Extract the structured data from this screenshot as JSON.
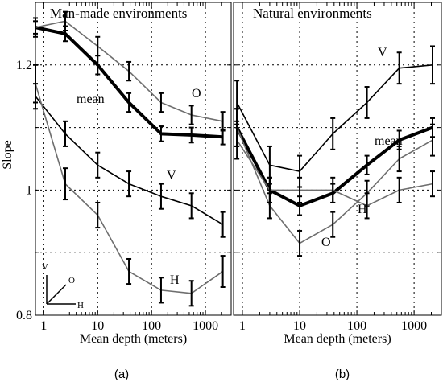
{
  "chart_data": [
    {
      "type": "line",
      "panel": "(a)",
      "title": "Man-made environments",
      "xlabel": "Mean depth (meters)",
      "ylabel": "Slope",
      "xscale": "log",
      "xlim": [
        0.7,
        3000
      ],
      "ylim": [
        0.8,
        1.3
      ],
      "xticks": [
        "1",
        "10",
        "100",
        "1000"
      ],
      "yticks": [
        "0.8",
        "1",
        "1.2"
      ],
      "grid": true,
      "x": [
        0.7,
        2.5,
        10,
        38,
        150,
        550,
        2100
      ],
      "series": [
        {
          "name": "mean",
          "color": "#000000",
          "width": "thick",
          "values": [
            1.26,
            1.25,
            1.2,
            1.14,
            1.09,
            1.088,
            1.085
          ],
          "errors": [
            0.01,
            0.012,
            0.015,
            0.015,
            0.012,
            0.012,
            0.012
          ]
        },
        {
          "name": "O",
          "color": "#6e6e6e",
          "width": "normal",
          "values": [
            1.26,
            1.27,
            1.23,
            1.19,
            1.14,
            1.12,
            1.11
          ],
          "errors": [
            0.015,
            0.015,
            0.015,
            0.015,
            0.015,
            0.015,
            0.015
          ]
        },
        {
          "name": "V",
          "color": "#000000",
          "width": "normal",
          "values": [
            1.15,
            1.09,
            1.04,
            1.01,
            0.99,
            0.975,
            0.945
          ],
          "errors": [
            0.02,
            0.02,
            0.02,
            0.02,
            0.02,
            0.02,
            0.02
          ]
        },
        {
          "name": "H",
          "color": "#6e6e6e",
          "width": "normal",
          "values": [
            1.17,
            1.01,
            0.96,
            0.87,
            0.84,
            0.835,
            0.87
          ],
          "errors": [
            0.03,
            0.025,
            0.02,
            0.02,
            0.02,
            0.02,
            0.025
          ]
        }
      ],
      "inset_axes": {
        "v": "V",
        "o": "O",
        "h": "H"
      }
    },
    {
      "type": "line",
      "panel": "(b)",
      "title": "Natural environments",
      "xlabel": "Mean depth (meters)",
      "ylabel": "",
      "xscale": "log",
      "xlim": [
        0.7,
        3000
      ],
      "ylim": [
        0.8,
        1.3
      ],
      "xticks": [
        "1",
        "10",
        "100",
        "1000"
      ],
      "yticks": [],
      "grid": true,
      "x": [
        0.8,
        3,
        10,
        38,
        150,
        550,
        2100
      ],
      "series": [
        {
          "name": "V",
          "color": "#000000",
          "width": "normal",
          "values": [
            1.14,
            1.04,
            1.03,
            1.09,
            1.14,
            1.195,
            1.2
          ],
          "errors": [
            0.035,
            0.03,
            0.025,
            0.025,
            0.025,
            0.025,
            0.03
          ]
        },
        {
          "name": "mean",
          "color": "#000000",
          "width": "thick",
          "values": [
            1.1,
            1.0,
            0.975,
            0.995,
            1.04,
            1.08,
            1.1
          ],
          "errors": [
            0.03,
            0.02,
            0.015,
            0.015,
            0.015,
            0.015,
            0.015
          ]
        },
        {
          "name": "O",
          "color": "#6e6e6e",
          "width": "normal",
          "values": [
            1.1,
            0.975,
            0.915,
            0.945,
            0.995,
            1.05,
            1.08
          ],
          "errors": [
            0.03,
            0.02,
            0.02,
            0.02,
            0.02,
            0.02,
            0.025
          ]
        },
        {
          "name": "H",
          "color": "#6e6e6e",
          "width": "normal",
          "values": [
            1.08,
            1.0,
            1.0,
            1.0,
            0.975,
            1.0,
            1.01
          ],
          "errors": [
            0.03,
            0.02,
            0.02,
            0.02,
            0.02,
            0.02,
            0.02
          ]
        }
      ]
    }
  ]
}
